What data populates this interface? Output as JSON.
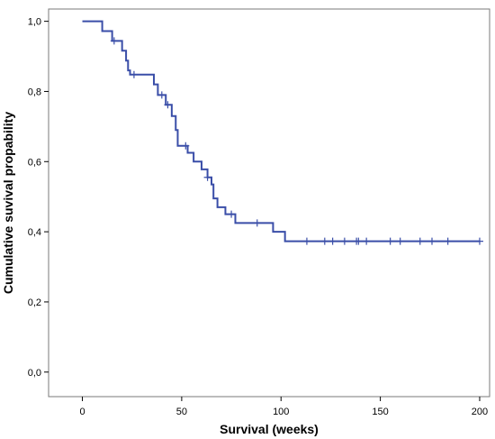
{
  "chart_data": {
    "type": "line",
    "title": "",
    "xlabel": "Survival (weeks)",
    "ylabel": "Cumulative suvival propability",
    "xlim": [
      -17,
      205
    ],
    "ylim": [
      -0.07,
      1.035
    ],
    "xticks": [
      0,
      50,
      100,
      150,
      200
    ],
    "xtick_labels": [
      "0",
      "50",
      "100",
      "150",
      "200"
    ],
    "yticks": [
      0.0,
      0.2,
      0.4,
      0.6,
      0.8,
      1.0
    ],
    "ytick_labels": [
      "0,0",
      "0,2",
      "0,4",
      "0,6",
      "0,8",
      "1,0"
    ],
    "grid": false,
    "line_color": "#3a4ea8",
    "series": [
      {
        "steps": [
          [
            0,
            1.0
          ],
          [
            10,
            0.972
          ],
          [
            15,
            0.944
          ],
          [
            20,
            0.916
          ],
          [
            22,
            0.888
          ],
          [
            23,
            0.86
          ],
          [
            24,
            0.848
          ],
          [
            36,
            0.82
          ],
          [
            38,
            0.79
          ],
          [
            42,
            0.762
          ],
          [
            45,
            0.73
          ],
          [
            47,
            0.69
          ],
          [
            48,
            0.645
          ],
          [
            53,
            0.625
          ],
          [
            56,
            0.6
          ],
          [
            60,
            0.578
          ],
          [
            63,
            0.555
          ],
          [
            65,
            0.535
          ],
          [
            66,
            0.495
          ],
          [
            68,
            0.47
          ],
          [
            72,
            0.45
          ],
          [
            77,
            0.425
          ],
          [
            96,
            0.4
          ],
          [
            102,
            0.373
          ]
        ],
        "end_x": 200,
        "censored": [
          [
            16,
            0.944
          ],
          [
            26,
            0.848
          ],
          [
            40,
            0.79
          ],
          [
            43,
            0.762
          ],
          [
            52,
            0.645
          ],
          [
            63,
            0.555
          ],
          [
            75,
            0.45
          ],
          [
            88,
            0.425
          ],
          [
            113,
            0.373
          ],
          [
            122,
            0.373
          ],
          [
            126,
            0.373
          ],
          [
            132,
            0.373
          ],
          [
            138,
            0.373
          ],
          [
            139,
            0.373
          ],
          [
            143,
            0.373
          ],
          [
            155,
            0.373
          ],
          [
            160,
            0.373
          ],
          [
            170,
            0.373
          ],
          [
            176,
            0.373
          ],
          [
            184,
            0.373
          ],
          [
            200,
            0.373
          ]
        ]
      }
    ]
  }
}
